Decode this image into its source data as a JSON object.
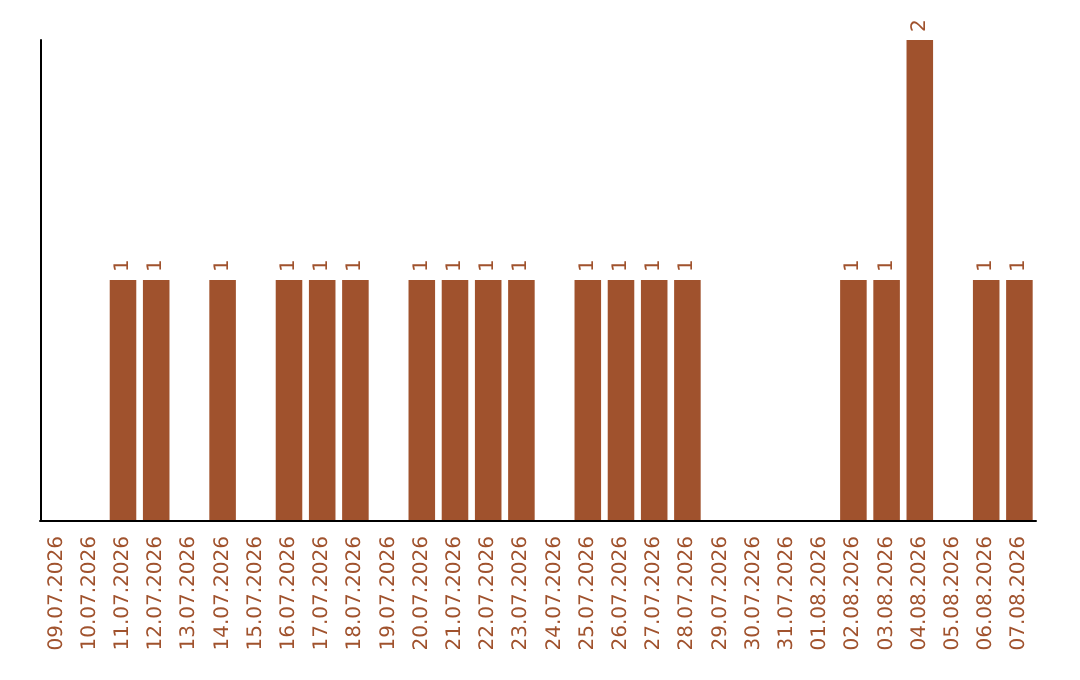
{
  "chart_data": {
    "type": "bar",
    "categories": [
      "09.07.2026",
      "10.07.2026",
      "11.07.2026",
      "12.07.2026",
      "13.07.2026",
      "14.07.2026",
      "15.07.2026",
      "16.07.2026",
      "17.07.2026",
      "18.07.2026",
      "19.07.2026",
      "20.07.2026",
      "21.07.2026",
      "22.07.2026",
      "23.07.2026",
      "24.07.2026",
      "25.07.2026",
      "26.07.2026",
      "27.07.2026",
      "28.07.2026",
      "29.07.2026",
      "30.07.2026",
      "31.07.2026",
      "01.08.2026",
      "02.08.2026",
      "03.08.2026",
      "04.08.2026",
      "05.08.2026",
      "06.08.2026",
      "07.08.2026"
    ],
    "values": [
      0,
      0,
      1,
      1,
      0,
      1,
      0,
      1,
      1,
      1,
      0,
      1,
      1,
      1,
      1,
      0,
      1,
      1,
      1,
      1,
      0,
      0,
      0,
      0,
      1,
      1,
      2,
      0,
      1,
      1
    ],
    "value_labels": [
      null,
      null,
      "1",
      "1",
      null,
      "1",
      null,
      "1",
      "1",
      "1",
      null,
      "1",
      "1",
      "1",
      "1",
      null,
      "1",
      "1",
      "1",
      "1",
      null,
      null,
      null,
      null,
      "1",
      "1",
      "2",
      null,
      "1",
      "1"
    ],
    "color": "#a0522d",
    "grid": false,
    "tick_labels": "x"
  }
}
